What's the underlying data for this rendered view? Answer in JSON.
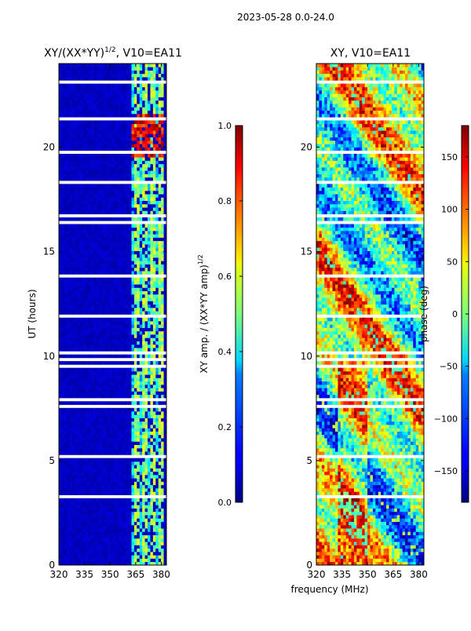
{
  "figure_title": "2023-05-28 0.0-24.0",
  "chart_data": [
    {
      "type": "heatmap",
      "title": "XY/(XX*YY)^{1/2}, V10=EA11",
      "title_main": "XY/(XX*YY)",
      "title_sup": "1/2",
      "title_tail": ", V10=EA11",
      "xlabel": "",
      "ylabel": "UT (hours)",
      "xlim": [
        320,
        383
      ],
      "ylim": [
        0,
        24
      ],
      "xticks": [
        320,
        335,
        350,
        365,
        380
      ],
      "yticks": [
        0,
        5,
        10,
        15,
        20
      ],
      "colorbar": {
        "label": "XY amp. / (XX*YY amp)^{1/2}",
        "label_main": "XY amp. / (XX*YY amp)",
        "label_sup": "1/2",
        "range": [
          0.0,
          1.0
        ],
        "ticks": [
          "0.0",
          "0.2",
          "0.4",
          "0.6",
          "0.8",
          "1.0"
        ],
        "tick_values": [
          0.0,
          0.2,
          0.4,
          0.6,
          0.8,
          1.0
        ]
      },
      "colormap": "jet"
    },
    {
      "type": "heatmap",
      "title": "XY, V10=EA11",
      "xlabel": "frequency (MHz)",
      "ylabel": "",
      "xlim": [
        320,
        383
      ],
      "ylim": [
        0,
        24
      ],
      "xticks": [
        320,
        335,
        350,
        365,
        380
      ],
      "yticks": [
        0,
        5,
        10,
        15,
        20
      ],
      "colorbar": {
        "label": "phase (deg)",
        "range": [
          -180,
          180
        ],
        "ticks": [
          "−150",
          "−100",
          "−50",
          "0",
          "50",
          "100",
          "150"
        ],
        "tick_values": [
          -150,
          -100,
          -50,
          0,
          50,
          100,
          150
        ]
      },
      "colormap": "jet"
    }
  ]
}
